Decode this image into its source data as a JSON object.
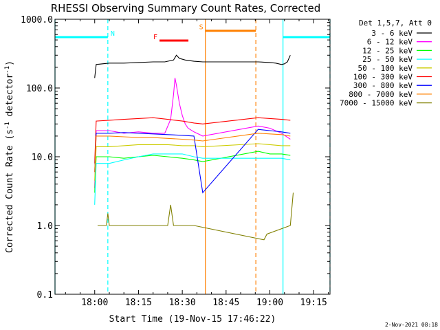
{
  "chart_data": {
    "type": "line",
    "title": "RHESSI Observing Summary Count Rates, Corrected",
    "xlabel": "Start Time (19-Nov-15 17:46:22)",
    "ylabel": "Corrected Count Rate (s-1 detector-1)",
    "yscale": "log",
    "ylim": [
      0.1,
      1000
    ],
    "xlim_minutes": [
      -13.6,
      80.6
    ],
    "x_ticks": [
      {
        "t": 0,
        "label": "18:00"
      },
      {
        "t": 15,
        "label": "18:15"
      },
      {
        "t": 30,
        "label": "18:30"
      },
      {
        "t": 45,
        "label": "18:45"
      },
      {
        "t": 60,
        "label": "19:00"
      },
      {
        "t": 75,
        "label": "19:15"
      }
    ],
    "y_ticks": [
      {
        "v": 0.1,
        "label": "0.1"
      },
      {
        "v": 1,
        "label": "1.0"
      },
      {
        "v": 10,
        "label": "10.0"
      },
      {
        "v": 100,
        "label": "100.0"
      },
      {
        "v": 1000,
        "label": "1000.0"
      }
    ],
    "legend": {
      "header": "Det 1,5,7, Att 0",
      "placement": "outside-right"
    },
    "series": [
      {
        "name": "3 - 6 keV",
        "color": "#000000",
        "x": [
          0,
          0.5,
          5,
          10,
          15,
          20,
          24,
          27,
          28,
          29,
          31,
          34,
          37,
          56,
          60,
          62,
          64,
          65,
          66,
          67
        ],
        "y": [
          140,
          220,
          230,
          230,
          235,
          240,
          240,
          255,
          300,
          270,
          255,
          245,
          240,
          240,
          235,
          230,
          220,
          225,
          240,
          300
        ]
      },
      {
        "name": "6 - 12 keV",
        "color": "#ff00ff",
        "x": [
          0,
          0.5,
          5,
          10,
          15,
          20,
          24,
          26,
          27,
          27.5,
          28,
          29,
          30,
          31,
          32,
          34,
          37,
          56,
          60,
          64,
          67
        ],
        "y": [
          3.5,
          24,
          24,
          22,
          23,
          22,
          22,
          35,
          80,
          140,
          110,
          60,
          40,
          30,
          26,
          23,
          20,
          28,
          26,
          22,
          18
        ]
      },
      {
        "name": "12 - 25 keV",
        "color": "#00ff00",
        "x": [
          0,
          0.5,
          5,
          10,
          15,
          20,
          25,
          30,
          34,
          37,
          56,
          60,
          64,
          67
        ],
        "y": [
          3,
          10,
          10,
          9.5,
          10,
          10.5,
          10,
          9.5,
          9,
          8.5,
          12,
          11,
          11,
          10.5
        ]
      },
      {
        "name": "25 - 50 keV",
        "color": "#00ffff",
        "x": [
          0,
          0.5,
          5,
          10,
          15,
          20,
          25,
          30,
          34,
          37,
          56,
          60,
          64,
          67
        ],
        "y": [
          2,
          8,
          8,
          9,
          10,
          11,
          11,
          11,
          10,
          9.5,
          9.5,
          9.5,
          9.5,
          9
        ]
      },
      {
        "name": "50 - 100 keV",
        "color": "#cccc00",
        "x": [
          0,
          0.5,
          5,
          10,
          15,
          20,
          25,
          30,
          34,
          37,
          56,
          60,
          64,
          67
        ],
        "y": [
          4.5,
          14,
          14,
          14.5,
          15,
          15,
          15,
          14.5,
          14.5,
          14,
          15.5,
          15,
          14.5,
          14.5
        ]
      },
      {
        "name": "100 - 300 keV",
        "color": "#ff0000",
        "x": [
          0,
          0.5,
          5,
          10,
          15,
          20,
          25,
          30,
          34,
          37,
          56,
          60,
          64,
          67
        ],
        "y": [
          8,
          33,
          34,
          35,
          36,
          37,
          35,
          33,
          31,
          30,
          37,
          36,
          35,
          34
        ]
      },
      {
        "name": "300 - 800 keV",
        "color": "#0000ff",
        "x": [
          0,
          0.5,
          5,
          10,
          15,
          20,
          25,
          30,
          34,
          37,
          56,
          60,
          64,
          67
        ],
        "y": [
          6,
          22,
          22,
          22.5,
          22,
          21.5,
          21,
          20.5,
          20,
          3,
          25,
          24,
          23,
          22
        ]
      },
      {
        "name": "800 - 7000 keV",
        "color": "#ff8000",
        "x": [
          0,
          0.5,
          5,
          10,
          15,
          20,
          25,
          30,
          34,
          37,
          56,
          60,
          64,
          67
        ],
        "y": [
          6,
          20,
          20,
          19.5,
          19,
          19,
          18.5,
          18,
          17.5,
          17,
          22,
          21.5,
          21,
          20
        ]
      },
      {
        "name": "7000 - 15000 keV",
        "color": "#808000",
        "x": [
          1,
          3,
          4,
          4.5,
          5,
          6,
          8,
          10,
          12,
          16,
          20,
          25,
          26,
          27,
          30,
          34,
          58,
          59,
          67,
          68
        ],
        "y": [
          1.0,
          1.0,
          1.0,
          1.5,
          1.0,
          1.0,
          1.0,
          1.0,
          1.0,
          1.0,
          1.0,
          1.0,
          2.0,
          1.0,
          1.0,
          1.0,
          0.62,
          0.75,
          1.0,
          3.0
        ]
      }
    ],
    "annotations": [
      {
        "label": "N",
        "color": "#00ffff",
        "bars": [
          [
            -13.6,
            4.5
          ],
          [
            64.5,
            80.6
          ]
        ],
        "bar_level": 550,
        "lines": [
          -13.6,
          4.5,
          64.5,
          80.6
        ]
      },
      {
        "label": "S",
        "color": "#ff8000",
        "bars": [
          [
            37.9,
            55.2
          ]
        ],
        "bar_level": 680,
        "lines": [
          37.9,
          55.2
        ]
      },
      {
        "label": "F",
        "color": "#ff0000",
        "bars": [
          [
            22.2,
            32.1
          ]
        ],
        "bar_level": 490,
        "lines": []
      }
    ],
    "timestamp": "2-Nov-2021 08:18"
  }
}
